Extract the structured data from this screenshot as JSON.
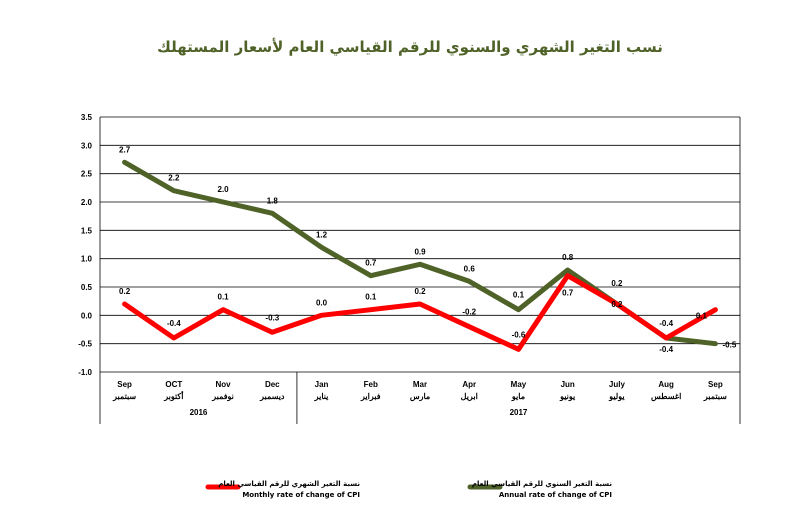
{
  "chart_data": {
    "type": "line",
    "title": "نسب التغير الشهري والسنوي للرقم القياسي العام لأسعار المستهلك",
    "ylim": [
      -1.0,
      3.5
    ],
    "yticks": [
      "3.5",
      "3.0",
      "2.5",
      "2.0",
      "1.5",
      "1.0",
      "0.5",
      "0.0",
      "-0.5",
      "-1.0"
    ],
    "grid": true,
    "legend_position": "bottom",
    "categories": [
      {
        "en": "Sep",
        "ar": "سبتمبر"
      },
      {
        "en": "OCT",
        "ar": "أكتوبر"
      },
      {
        "en": "Nov",
        "ar": "نوفمبر"
      },
      {
        "en": "Dec",
        "ar": "ديسمبر"
      },
      {
        "en": "Jan",
        "ar": "يناير"
      },
      {
        "en": "Feb",
        "ar": "فبراير"
      },
      {
        "en": "Mar",
        "ar": "مارس"
      },
      {
        "en": "Apr",
        "ar": "ابريل"
      },
      {
        "en": "May",
        "ar": "مايو"
      },
      {
        "en": "Jun",
        "ar": "يونيو"
      },
      {
        "en": "July",
        "ar": "يوليو"
      },
      {
        "en": "Aug",
        "ar": "اغسطس"
      },
      {
        "en": "Sep",
        "ar": "سبتمبر"
      }
    ],
    "years": [
      {
        "label": "2016",
        "from": 0,
        "to": 3
      },
      {
        "label": "2017",
        "from": 4,
        "to": 12
      }
    ],
    "series": [
      {
        "name_ar": "نسبة التغير السنوي للرقم القياسي العام",
        "name": "Annual rate of change of CPI",
        "color": "#4f6228",
        "values": [
          2.7,
          2.2,
          2.0,
          1.8,
          1.2,
          0.7,
          0.9,
          0.6,
          0.1,
          0.8,
          0.2,
          -0.4,
          -0.5
        ],
        "labels": [
          "2.7",
          "2.2",
          "2.0",
          "1.8",
          "1.2",
          "0.7",
          "0.9",
          "0.6",
          "0.1",
          "0.8",
          "0.2",
          "-0.4",
          "-0.5"
        ]
      },
      {
        "name_ar": "نسبة التغير الشهري للرقم القياسي العام",
        "name": "Monthly rate of change of CPI",
        "color": "#ff0000",
        "values": [
          0.2,
          -0.4,
          0.1,
          -0.3,
          0.0,
          0.1,
          0.2,
          -0.2,
          -0.6,
          0.7,
          0.2,
          -0.4,
          0.1
        ],
        "labels": [
          "0.2",
          "-0.4",
          "0.1",
          "-0.3",
          "0.0",
          "0.1",
          "0.2",
          "-0.2",
          "-0.6",
          "0.7",
          "0.2",
          "-0.4",
          "0.1"
        ]
      }
    ]
  }
}
